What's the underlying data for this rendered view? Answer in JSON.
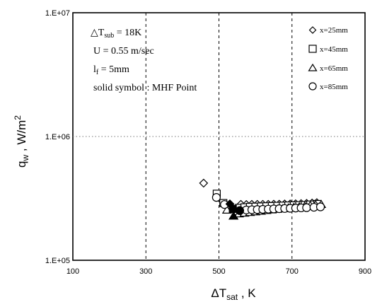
{
  "chart_data": {
    "type": "scatter",
    "x_axis": {
      "label_main": "ΔT",
      "label_sub": "sat",
      "label_unit": " , K",
      "range": [
        100,
        900
      ],
      "ticks": [
        100,
        300,
        500,
        700,
        900
      ],
      "tick_labels": [
        "100",
        "300",
        "500",
        "700",
        "900"
      ]
    },
    "y_axis": {
      "label_main": "q",
      "label_sub": "w",
      "label_unit": " , W/m",
      "label_sup": "2",
      "scale": "log",
      "range": [
        100000,
        10000000
      ],
      "ticks": [
        100000,
        1000000,
        10000000
      ],
      "tick_labels": [
        "1.E+05",
        "1.E+06",
        "1.E+07"
      ]
    },
    "grid": {
      "vertical_dashed_at": [
        300,
        500,
        700
      ],
      "horizontal_dotted_at": [
        1000000
      ]
    },
    "annotations": [
      {
        "main": "△T",
        "sub": "sub",
        "rest": " = 18K"
      },
      {
        "main": "U = 0.55 m/sec"
      },
      {
        "main": "l",
        "sub": "f",
        "rest": " = 5mm"
      },
      {
        "main": "solid symbol : MHF Point"
      }
    ],
    "legend_position": "top-right",
    "series": [
      {
        "name": "x=25mm",
        "marker": "diamond",
        "points": [
          [
            458,
            420000
          ],
          [
            530,
            285000
          ],
          [
            560,
            283000
          ],
          [
            575,
            282000
          ],
          [
            590,
            283000
          ],
          [
            605,
            283000
          ],
          [
            620,
            283000
          ],
          [
            635,
            283000
          ],
          [
            650,
            284000
          ],
          [
            665,
            284000
          ],
          [
            680,
            285000
          ],
          [
            695,
            285000
          ],
          [
            710,
            286000
          ],
          [
            725,
            287000
          ],
          [
            740,
            288000
          ],
          [
            755,
            290000
          ],
          [
            768,
            292000
          ]
        ],
        "solid_points": [
          [
            530,
            285000
          ]
        ]
      },
      {
        "name": "x=45mm",
        "marker": "square",
        "points": [
          [
            494,
            345000
          ],
          [
            512,
            290000
          ],
          [
            538,
            260000
          ],
          [
            555,
            265000
          ],
          [
            570,
            268000
          ],
          [
            585,
            270000
          ],
          [
            600,
            271000
          ],
          [
            615,
            272000
          ],
          [
            630,
            273000
          ],
          [
            645,
            274000
          ],
          [
            660,
            275000
          ],
          [
            675,
            276000
          ],
          [
            690,
            277000
          ],
          [
            705,
            278000
          ],
          [
            720,
            279000
          ],
          [
            735,
            280000
          ],
          [
            750,
            282000
          ],
          [
            770,
            285000
          ]
        ],
        "solid_points": [
          [
            538,
            260000
          ]
        ]
      },
      {
        "name": "x=65mm",
        "marker": "triangle",
        "points": [
          [
            522,
            255000
          ],
          [
            540,
            228000
          ],
          [
            555,
            238000
          ],
          [
            570,
            241000
          ],
          [
            585,
            244000
          ],
          [
            600,
            247000
          ],
          [
            615,
            250000
          ],
          [
            630,
            253000
          ],
          [
            645,
            256000
          ],
          [
            660,
            259000
          ],
          [
            675,
            262000
          ],
          [
            690,
            265000
          ],
          [
            705,
            268000
          ],
          [
            720,
            271000
          ],
          [
            735,
            274000
          ],
          [
            750,
            277000
          ],
          [
            765,
            280000
          ],
          [
            780,
            283000
          ]
        ],
        "solid_points": [
          [
            540,
            228000
          ]
        ]
      },
      {
        "name": "x=85mm",
        "marker": "circle",
        "points": [
          [
            493,
            322000
          ],
          [
            515,
            282000
          ],
          [
            557,
            252000
          ],
          [
            575,
            255000
          ],
          [
            590,
            256000
          ],
          [
            605,
            257000
          ],
          [
            620,
            258000
          ],
          [
            635,
            259000
          ],
          [
            650,
            260000
          ],
          [
            665,
            261000
          ],
          [
            680,
            262000
          ],
          [
            695,
            263000
          ],
          [
            710,
            264000
          ],
          [
            725,
            265000
          ],
          [
            740,
            266000
          ],
          [
            760,
            268000
          ],
          [
            778,
            270000
          ]
        ],
        "solid_points": [
          [
            557,
            252000
          ]
        ]
      }
    ]
  }
}
